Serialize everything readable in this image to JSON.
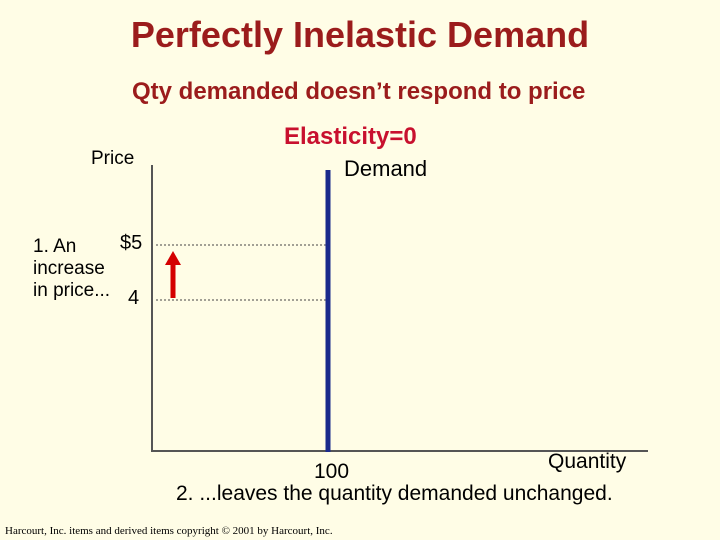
{
  "slide": {
    "title": "Perfectly Inelastic Demand",
    "subtitle": "Qty demanded doesn’t respond to price",
    "elasticity_label": "Elasticity=0",
    "note_price_increase": [
      "1. An",
      "increase",
      "in price..."
    ],
    "note_quantity": "2. ...leaves the quantity demanded unchanged.",
    "copyright": "Harcourt, Inc. items and derived items copyright © 2001 by Harcourt, Inc."
  },
  "chart_data": {
    "type": "line",
    "ylabel": "Price",
    "xlabel": "Quantity",
    "curve_label": "Demand",
    "x_ticks": [
      {
        "value": 100,
        "label": "100"
      }
    ],
    "y_ticks": [
      {
        "value": 5,
        "label": "$5"
      },
      {
        "value": 4,
        "label": "4"
      }
    ],
    "series": [
      {
        "name": "Demand",
        "points": [
          {
            "x": 100,
            "y": 4
          },
          {
            "x": 100,
            "y": 5
          }
        ],
        "orientation": "vertical"
      }
    ],
    "reference_lines": [
      {
        "y": 5
      },
      {
        "y": 4
      }
    ],
    "arrow": {
      "from_y": 4,
      "to_y": 5,
      "meaning": "price increase"
    },
    "colors": {
      "demand": "#1a2a8c",
      "arrow": "#d40000",
      "title": "#9b1c1c"
    }
  }
}
